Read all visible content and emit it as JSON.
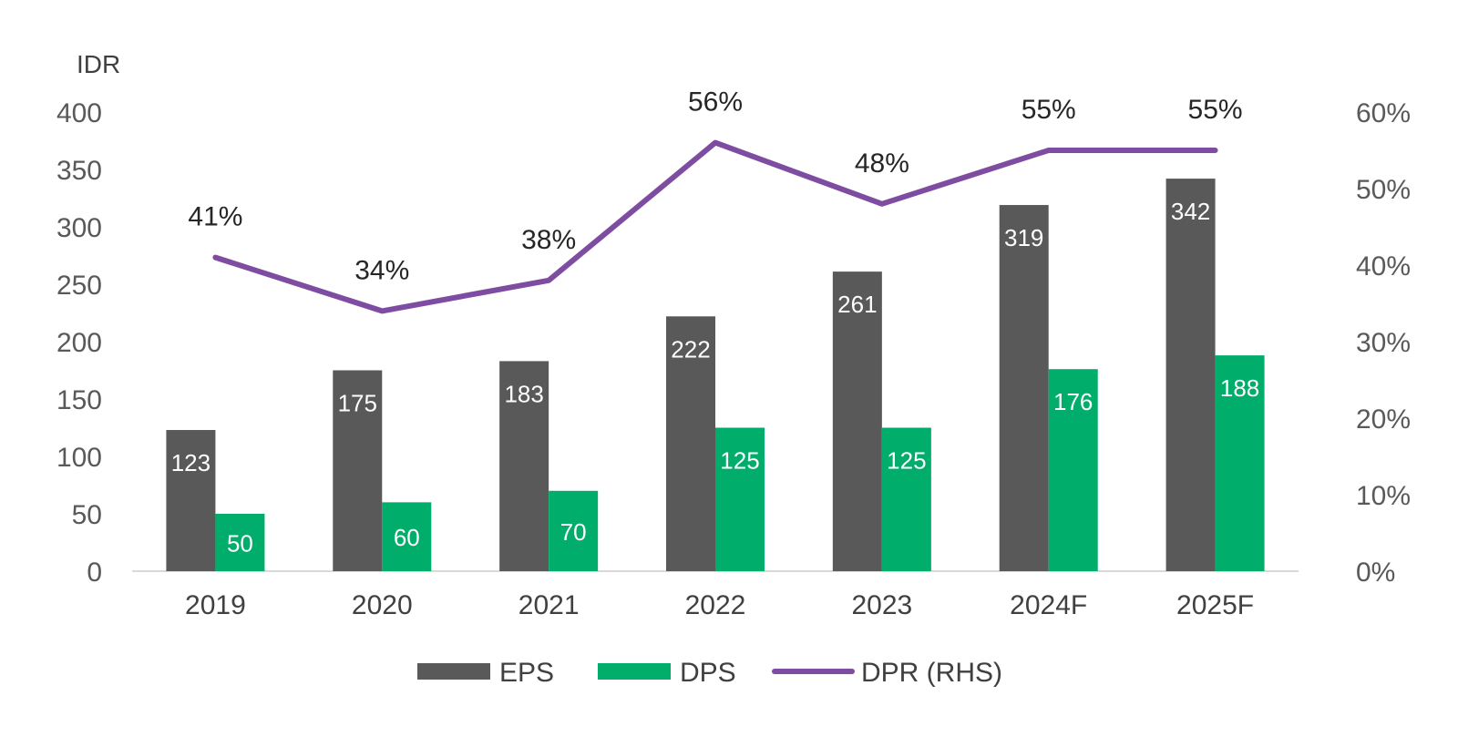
{
  "chart_data": {
    "type": "bar",
    "categories": [
      "2019",
      "2020",
      "2021",
      "2022",
      "2023",
      "2024F",
      "2025F"
    ],
    "series": [
      {
        "name": "EPS",
        "type": "bar",
        "axis": "left",
        "color": "#595959",
        "values": [
          123,
          175,
          183,
          222,
          261,
          319,
          342
        ],
        "labels": [
          "123",
          "175",
          "183",
          "222",
          "261",
          "319",
          "342"
        ]
      },
      {
        "name": "DPS",
        "type": "bar",
        "axis": "left",
        "color": "#00ad6a",
        "values": [
          50,
          60,
          70,
          125,
          125,
          176,
          188
        ],
        "labels": [
          "50",
          "60",
          "70",
          "125",
          "125",
          "176",
          "188"
        ]
      },
      {
        "name": "DPR (RHS)",
        "type": "line",
        "axis": "right",
        "color": "#7e4ca1",
        "values": [
          41,
          34,
          38,
          56,
          48,
          55,
          55
        ],
        "labels": [
          "41%",
          "34%",
          "38%",
          "56%",
          "48%",
          "55%",
          "55%"
        ]
      }
    ],
    "y_left": {
      "unit": "IDR",
      "range": [
        0,
        400
      ],
      "ticks": [
        "0",
        "50",
        "100",
        "150",
        "200",
        "250",
        "300",
        "350",
        "400"
      ]
    },
    "y_right": {
      "range": [
        0,
        60
      ],
      "ticks": [
        "0%",
        "10%",
        "20%",
        "30%",
        "40%",
        "50%",
        "60%"
      ]
    },
    "grid": false,
    "legend_position": "bottom"
  }
}
